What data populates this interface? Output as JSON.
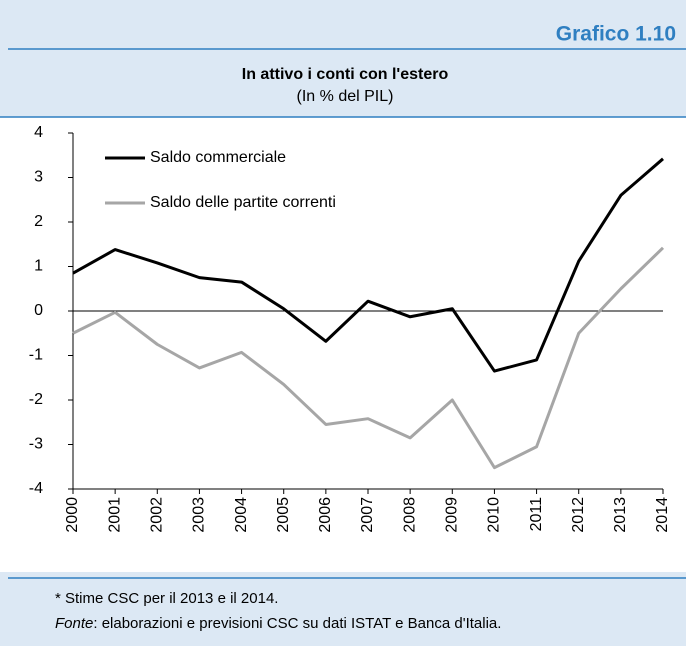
{
  "header": {
    "label": "Grafico 1.10"
  },
  "chart_data": {
    "type": "line",
    "title": "In attivo i conti con l'estero",
    "subtitle": "(In % del PIL)",
    "categories": [
      "2000",
      "2001",
      "2002",
      "2003",
      "2004",
      "2005",
      "2006",
      "2007",
      "2008",
      "2009",
      "2010",
      "2011",
      "2012",
      "2013",
      "2014"
    ],
    "series": [
      {
        "name": "Saldo commerciale",
        "color": "#000000",
        "values": [
          0.85,
          1.38,
          1.08,
          0.75,
          0.65,
          0.05,
          -0.68,
          0.22,
          -0.13,
          0.05,
          -1.35,
          -1.1,
          1.12,
          2.6,
          3.42
        ]
      },
      {
        "name": "Saldo delle partite correnti",
        "color": "#a6a6a6",
        "values": [
          -0.5,
          -0.03,
          -0.75,
          -1.28,
          -0.93,
          -1.65,
          -2.55,
          -2.42,
          -2.85,
          -2.0,
          -3.52,
          -3.05,
          -0.5,
          0.5,
          1.42
        ]
      }
    ],
    "ylim": [
      -4,
      4
    ],
    "yticks": [
      -4,
      -3,
      -2,
      -1,
      0,
      1,
      2,
      3,
      4
    ],
    "zero_line": true
  },
  "footnote": {
    "note": "* Stime CSC per il 2013 e il 2014.",
    "source_label": "Fonte",
    "source_text": ": elaborazioni e previsioni CSC su dati ISTAT e Banca d'Italia."
  }
}
